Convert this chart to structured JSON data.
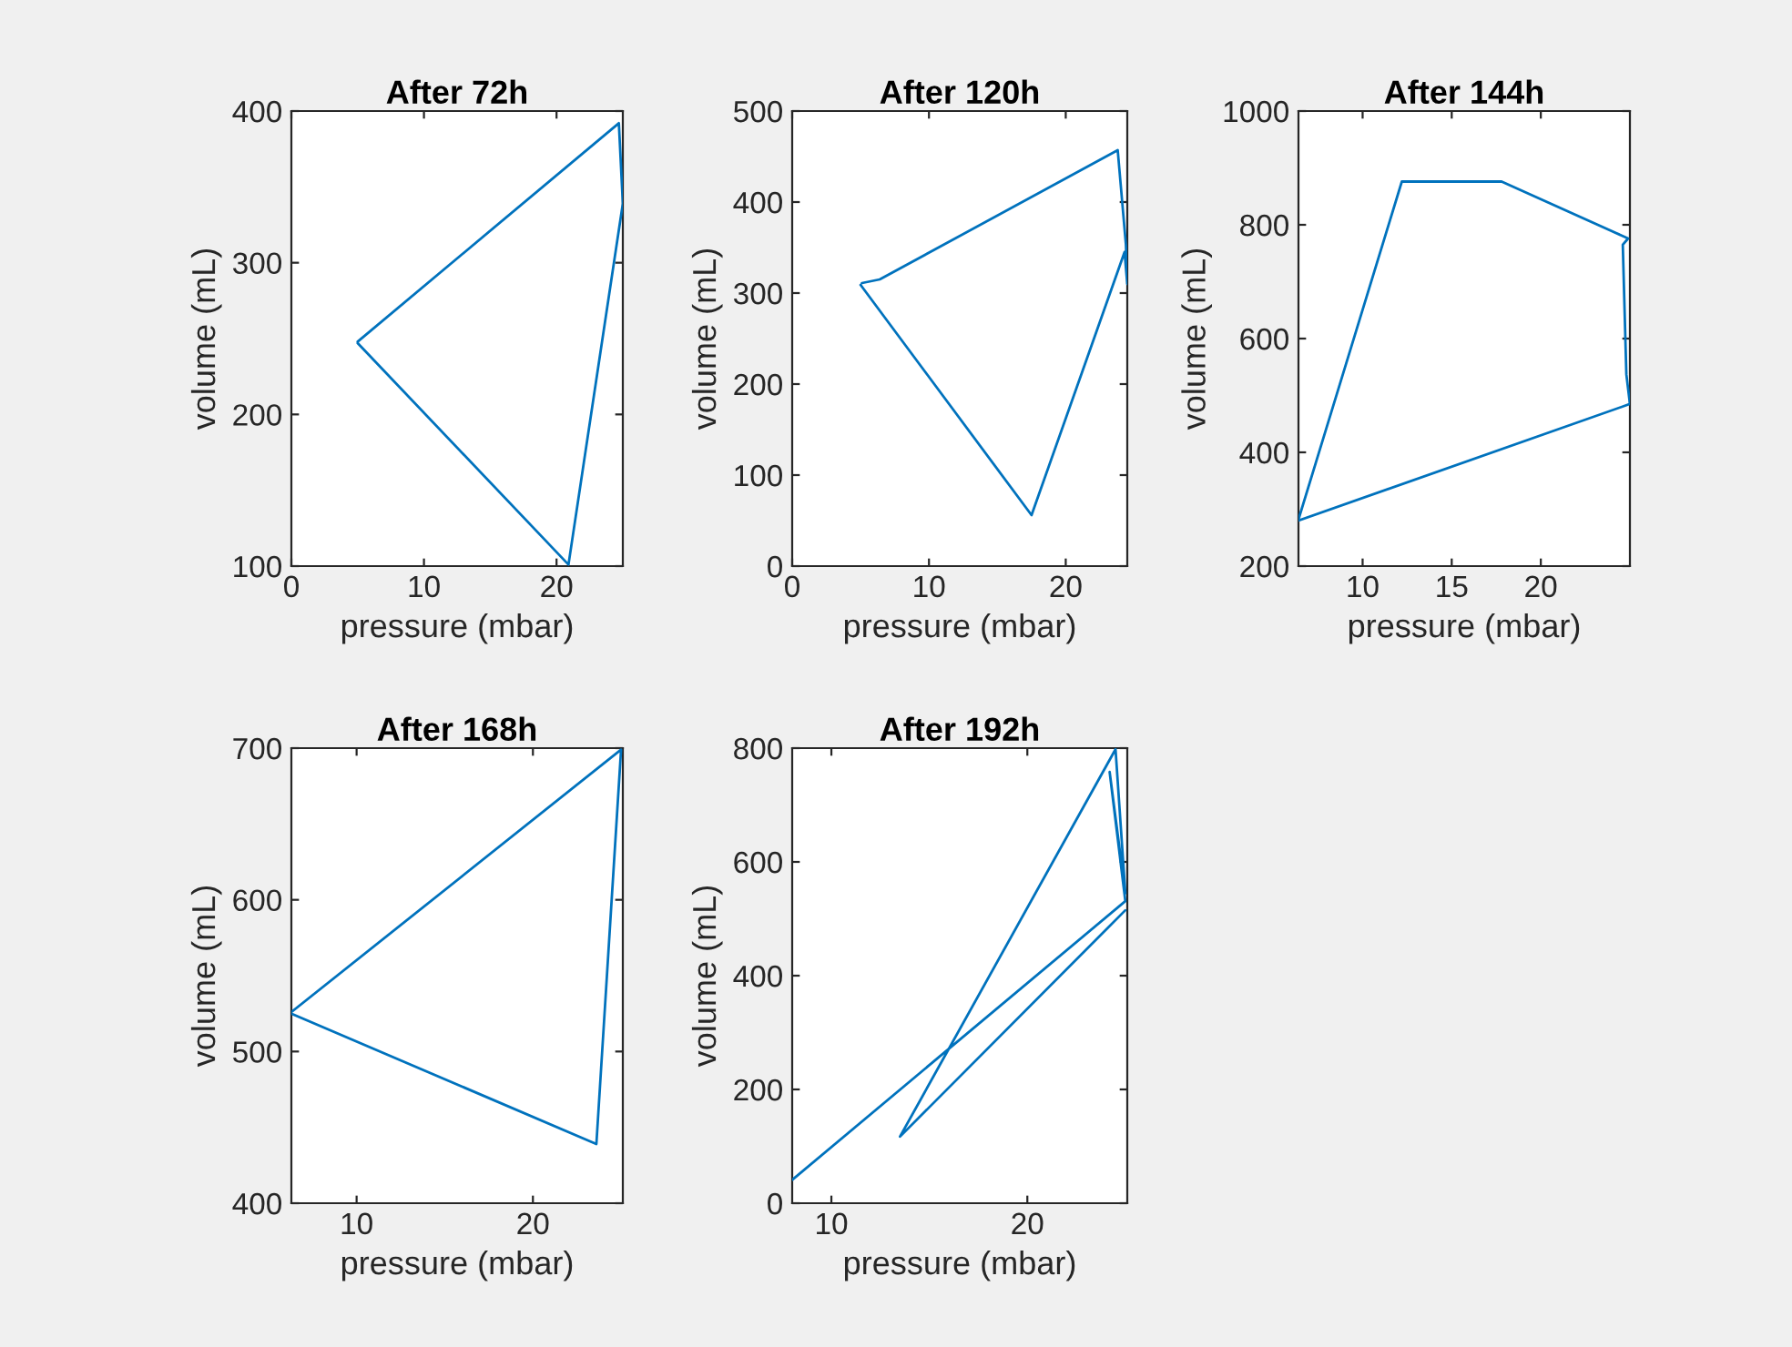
{
  "chart_data": [
    {
      "type": "line",
      "title": "After 72h",
      "xlabel": "pressure (mbar)",
      "ylabel": "volume (mL)",
      "xlim": [
        0,
        25
      ],
      "ylim": [
        100,
        400
      ],
      "xticks": [
        0,
        10,
        20
      ],
      "yticks": [
        100,
        200,
        300,
        400
      ],
      "series": [
        {
          "color": "#0072bd",
          "x": [
            5.0,
            24.7,
            25.0,
            20.9,
            5.0
          ],
          "values": [
            248,
            392,
            339,
            101,
            247
          ]
        }
      ]
    },
    {
      "type": "line",
      "title": "After 120h",
      "xlabel": "pressure (mbar)",
      "ylabel": "volume (mL)",
      "xlim": [
        0,
        24.5
      ],
      "ylim": [
        0,
        500
      ],
      "xticks": [
        0,
        10,
        20
      ],
      "yticks": [
        0,
        100,
        200,
        300,
        400,
        500
      ],
      "series": [
        {
          "color": "#0072bd",
          "x": [
            5.1,
            6.4,
            23.8,
            24.4,
            24.5,
            24.3,
            17.5,
            5.0
          ],
          "values": [
            311,
            315,
            457,
            353,
            310,
            345,
            56,
            309
          ]
        }
      ]
    },
    {
      "type": "line",
      "title": "After 144h",
      "xlabel": "pressure (mbar)",
      "ylabel": "volume (mL)",
      "xlim": [
        6.4,
        25.0
      ],
      "ylim": [
        200,
        1000
      ],
      "xticks": [
        10,
        15,
        20
      ],
      "yticks": [
        200,
        400,
        600,
        800,
        1000
      ],
      "series": [
        {
          "color": "#0072bd",
          "x": [
            6.4,
            12.2,
            17.8,
            24.9,
            24.6,
            24.8,
            25.0,
            6.4
          ],
          "values": [
            282,
            876,
            876,
            776,
            765,
            537,
            485,
            280
          ]
        }
      ]
    },
    {
      "type": "line",
      "title": "After 168h",
      "xlabel": "pressure (mbar)",
      "ylabel": "volume (mL)",
      "xlim": [
        6.3,
        25.1
      ],
      "ylim": [
        400,
        700
      ],
      "xticks": [
        10,
        20
      ],
      "yticks": [
        400,
        500,
        600,
        700
      ],
      "series": [
        {
          "color": "#0072bd",
          "x": [
            6.3,
            25.0,
            23.6,
            6.3
          ],
          "values": [
            526,
            699,
            439,
            525
          ]
        }
      ]
    },
    {
      "type": "line",
      "title": "After 192h",
      "xlabel": "pressure (mbar)",
      "ylabel": "volume (mL)",
      "xlim": [
        8.0,
        25.1
      ],
      "ylim": [
        0,
        800
      ],
      "xticks": [
        10,
        20
      ],
      "yticks": [
        0,
        200,
        400,
        600,
        800
      ],
      "series": [
        {
          "color": "#0072bd",
          "x": [
            8.0,
            25.0,
            24.2,
            25.0,
            24.5,
            13.5,
            25.0
          ],
          "values": [
            41,
            531,
            758,
            545,
            798,
            117,
            515
          ]
        }
      ]
    }
  ]
}
